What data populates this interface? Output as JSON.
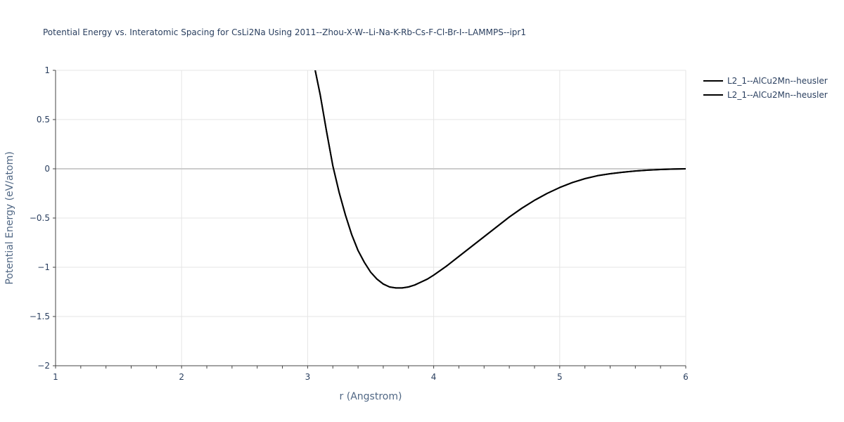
{
  "chart_data": {
    "type": "line",
    "title": "Potential Energy vs. Interatomic Spacing for CsLi2Na Using 2011--Zhou-X-W--Li-Na-K-Rb-Cs-F-Cl-Br-I--LAMMPS--ipr1",
    "xlabel": "r (Angstrom)",
    "ylabel": "Potential Energy (eV/atom)",
    "xlim": [
      1,
      6
    ],
    "ylim": [
      -2,
      1
    ],
    "xticks": [
      1,
      2,
      3,
      4,
      5,
      6
    ],
    "yticks": [
      1,
      0.5,
      0,
      -0.5,
      -1,
      -1.5,
      -2
    ],
    "ytick_labels": [
      "1",
      "0.5",
      "0",
      "−0.5",
      "−1",
      "−1.5",
      "−2"
    ],
    "grid": true,
    "legend_position": "top-right",
    "colors": {
      "series": "#000000",
      "grid": "#e5e5e5",
      "zeroline": "#cccccc",
      "text": "#2a3f5f"
    },
    "series": [
      {
        "name": "L2_1--AlCu2Mn--heusler",
        "x": [
          3.06,
          3.1,
          3.15,
          3.2,
          3.25,
          3.3,
          3.35,
          3.4,
          3.45,
          3.5,
          3.55,
          3.6,
          3.65,
          3.7,
          3.75,
          3.8,
          3.85,
          3.9,
          3.95,
          4.0,
          4.1,
          4.2,
          4.3,
          4.4,
          4.5,
          4.6,
          4.7,
          4.8,
          4.9,
          5.0,
          5.1,
          5.2,
          5.3,
          5.4,
          5.5,
          5.6,
          5.7,
          5.8,
          5.9,
          6.0
        ],
        "y": [
          1.0,
          0.75,
          0.38,
          0.03,
          -0.24,
          -0.47,
          -0.67,
          -0.83,
          -0.95,
          -1.05,
          -1.12,
          -1.17,
          -1.2,
          -1.21,
          -1.21,
          -1.2,
          -1.18,
          -1.15,
          -1.12,
          -1.08,
          -0.99,
          -0.89,
          -0.79,
          -0.69,
          -0.59,
          -0.49,
          -0.4,
          -0.32,
          -0.25,
          -0.19,
          -0.14,
          -0.1,
          -0.07,
          -0.05,
          -0.035,
          -0.022,
          -0.013,
          -0.007,
          -0.003,
          0.0
        ]
      },
      {
        "name": "L2_1--AlCu2Mn--heusler",
        "x": [
          3.06,
          3.1,
          3.15,
          3.2,
          3.25,
          3.3,
          3.35,
          3.4,
          3.45,
          3.5,
          3.55,
          3.6,
          3.65,
          3.7,
          3.75,
          3.8,
          3.85,
          3.9,
          3.95,
          4.0,
          4.1,
          4.2,
          4.3,
          4.4,
          4.5,
          4.6,
          4.7,
          4.8,
          4.9,
          5.0,
          5.1,
          5.2,
          5.3,
          5.4,
          5.5,
          5.6,
          5.7,
          5.8,
          5.9,
          6.0
        ],
        "y": [
          1.0,
          0.75,
          0.38,
          0.03,
          -0.24,
          -0.47,
          -0.67,
          -0.83,
          -0.95,
          -1.05,
          -1.12,
          -1.17,
          -1.2,
          -1.21,
          -1.21,
          -1.2,
          -1.18,
          -1.15,
          -1.12,
          -1.08,
          -0.99,
          -0.89,
          -0.79,
          -0.69,
          -0.59,
          -0.49,
          -0.4,
          -0.32,
          -0.25,
          -0.19,
          -0.14,
          -0.1,
          -0.07,
          -0.05,
          -0.035,
          -0.022,
          -0.013,
          -0.007,
          -0.003,
          0.0
        ]
      }
    ]
  }
}
